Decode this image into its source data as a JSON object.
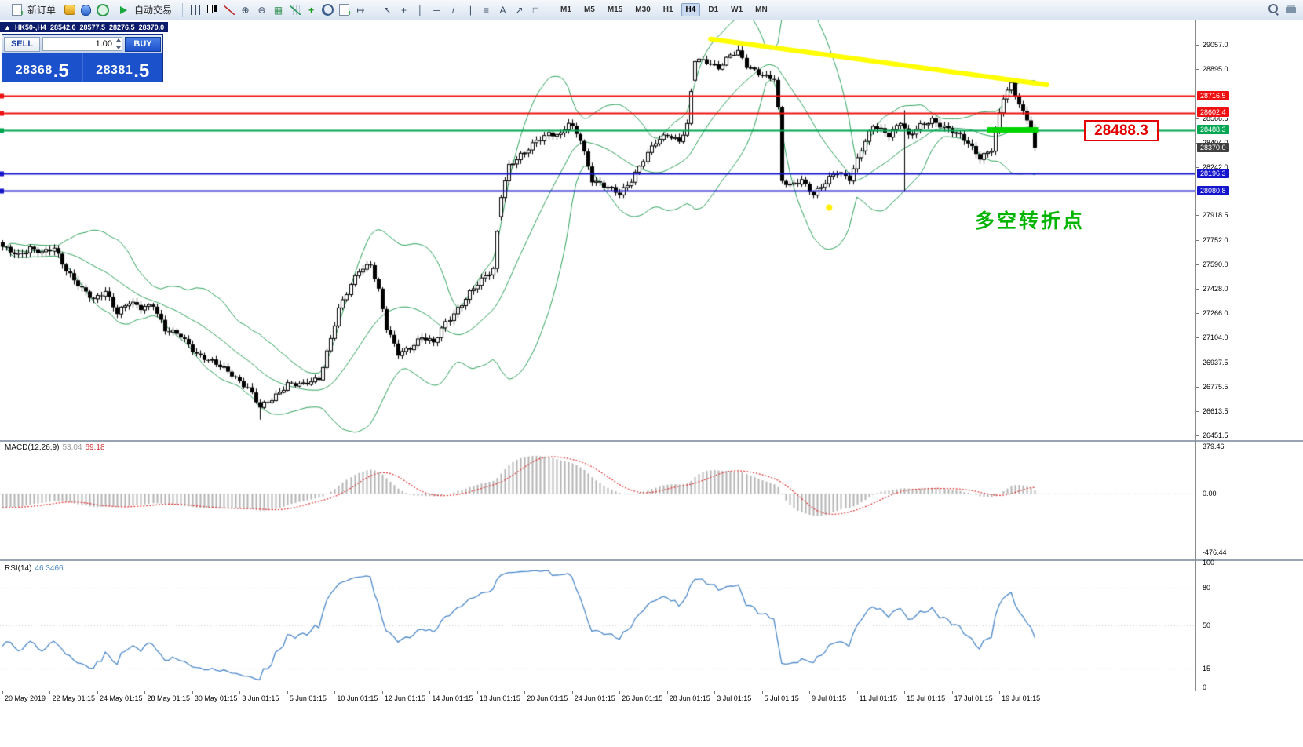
{
  "toolbar": {
    "new_order_label": "新订单",
    "autotrade_label": "自动交易",
    "chart_icons": [
      {
        "name": "bar-chart-icon",
        "css": "ic-bars"
      },
      {
        "name": "candlestick-chart-icon",
        "css": "ic-candle"
      },
      {
        "name": "line-chart-icon",
        "css": "ic-line"
      },
      {
        "name": "zoom-in-icon",
        "glyph": "⊕"
      },
      {
        "name": "zoom-out-icon",
        "glyph": "⊖"
      },
      {
        "name": "tile-windows-icon",
        "glyph": "▦",
        "color": "#2f8f4f"
      },
      {
        "name": "indicators-icon",
        "css": "ic-ind"
      },
      {
        "name": "add-indicator-icon",
        "glyph": "+",
        "color": "#159a15"
      },
      {
        "name": "period-icon",
        "css": "ic-clock"
      },
      {
        "name": "templates-icon",
        "css": "ic-doc"
      },
      {
        "name": "chart-shift-icon",
        "glyph": "↦"
      }
    ],
    "draw_icons": [
      {
        "name": "cursor-icon",
        "glyph": "↖"
      },
      {
        "name": "crosshair-icon",
        "glyph": "+"
      },
      {
        "name": "vertical-line-icon",
        "glyph": "│"
      },
      {
        "name": "horizontal-line-icon",
        "glyph": "─"
      },
      {
        "name": "trendline-icon",
        "glyph": "/"
      },
      {
        "name": "channel-icon",
        "glyph": "∥"
      },
      {
        "name": "fibonacci-icon",
        "glyph": "≡"
      },
      {
        "name": "text-icon",
        "glyph": "A"
      },
      {
        "name": "arrows-icon",
        "glyph": "↗"
      },
      {
        "name": "shapes-icon",
        "glyph": "□"
      }
    ],
    "timeframes": [
      "M1",
      "M5",
      "M15",
      "M30",
      "H1",
      "H4",
      "D1",
      "W1",
      "MN"
    ],
    "active_timeframe": "H4",
    "right_icons": [
      {
        "name": "search-icon",
        "css": "ic-search"
      },
      {
        "name": "print-icon",
        "css": "ic-print"
      }
    ]
  },
  "chart_info": {
    "direction_glyph": "▲",
    "symbol_period": "HK50-,H4",
    "open": "28542.0",
    "high": "28577.5",
    "low": "28276.5",
    "close": "28370.0"
  },
  "one_click": {
    "sell_label": "SELL",
    "buy_label": "BUY",
    "volume": "1.00",
    "sell_price_main": "28368",
    "sell_price_pips": ".5",
    "buy_price_main": "28381",
    "buy_price_pips": ".5"
  },
  "annotations": {
    "price_callout": "28488.3",
    "note_text": "多空转折点",
    "note_color": "#00b400"
  },
  "macd": {
    "label": "MACD(12,26,9)",
    "value_main": "53.04",
    "value_signal": "69.18",
    "axis_labels": [
      "379.46",
      "0.00",
      "-476.44"
    ]
  },
  "rsi": {
    "label": "RSI(14)",
    "value": "46.3466",
    "axis_labels": [
      "100",
      "80",
      "50",
      "15",
      "0"
    ]
  },
  "price_axis": {
    "plain_labels": [
      29057.0,
      28895.0,
      28566.5,
      28404.0,
      28242.0,
      27918.5,
      27752.0,
      27590.0,
      27428.0,
      27266.0,
      27104.0,
      26937.5,
      26775.5,
      26613.5,
      26451.5
    ],
    "level_labels": [
      {
        "value": "28716.5",
        "color": "#ee1111"
      },
      {
        "value": "28602.4",
        "color": "#ee1111"
      },
      {
        "value": "28488.3",
        "color": "#00a651"
      },
      {
        "value": "28370.0",
        "color": "#404040"
      },
      {
        "value": "28196.3",
        "color": "#1515cc"
      },
      {
        "value": "28080.8",
        "color": "#1515cc"
      }
    ]
  },
  "time_axis": {
    "labels": [
      "20 May 2019",
      "22 May 01:15",
      "24 May 01:15",
      "28 May 01:15",
      "30 May 01:15",
      "3 Jun 01:15",
      "5 Jun 01:15",
      "10 Jun 01:15",
      "12 Jun 01:15",
      "14 Jun 01:15",
      "18 Jun 01:15",
      "20 Jun 01:15",
      "24 Jun 01:15",
      "26 Jun 01:15",
      "28 Jun 01:15",
      "3 Jul 01:15",
      "5 Jul 01:15",
      "9 Jul 01:15",
      "11 Jul 01:15",
      "15 Jul 01:15",
      "17 Jul 01:15",
      "19 Jul 01:15"
    ],
    "candles_per_tick": 12
  },
  "chart_data": {
    "type": "candlestick",
    "symbol": "HK50",
    "timeframe": "H4",
    "ohlc_header": {
      "open": 28542.0,
      "high": 28577.5,
      "low": 28276.5,
      "close": 28370.0
    },
    "price_axis_range": [
      26451.5,
      29057.0
    ],
    "candle_count": 262,
    "current_price": 28370.0,
    "close_keypoints": [
      [
        0,
        27700
      ],
      [
        4,
        27660
      ],
      [
        7,
        27700
      ],
      [
        10,
        27660
      ],
      [
        13,
        27700
      ],
      [
        16,
        27560
      ],
      [
        20,
        27420
      ],
      [
        23,
        27350
      ],
      [
        26,
        27420
      ],
      [
        29,
        27270
      ],
      [
        32,
        27330
      ],
      [
        35,
        27300
      ],
      [
        38,
        27330
      ],
      [
        41,
        27150
      ],
      [
        45,
        27110
      ],
      [
        49,
        27000
      ],
      [
        54,
        26920
      ],
      [
        58,
        26860
      ],
      [
        62,
        26770
      ],
      [
        65,
        26630
      ],
      [
        68,
        26690
      ],
      [
        72,
        26800
      ],
      [
        76,
        26780
      ],
      [
        80,
        26830
      ],
      [
        82,
        27010
      ],
      [
        85,
        27290
      ],
      [
        90,
        27550
      ],
      [
        93,
        27600
      ],
      [
        95,
        27420
      ],
      [
        97,
        27160
      ],
      [
        100,
        26990
      ],
      [
        103,
        27040
      ],
      [
        106,
        27110
      ],
      [
        109,
        27060
      ],
      [
        112,
        27200
      ],
      [
        115,
        27300
      ],
      [
        118,
        27400
      ],
      [
        121,
        27480
      ],
      [
        124,
        27560
      ],
      [
        126,
        28060
      ],
      [
        128,
        28250
      ],
      [
        132,
        28330
      ],
      [
        135,
        28420
      ],
      [
        138,
        28470
      ],
      [
        141,
        28450
      ],
      [
        143,
        28530
      ],
      [
        146,
        28430
      ],
      [
        149,
        28160
      ],
      [
        152,
        28110
      ],
      [
        156,
        28060
      ],
      [
        159,
        28160
      ],
      [
        162,
        28290
      ],
      [
        165,
        28400
      ],
      [
        168,
        28460
      ],
      [
        171,
        28420
      ],
      [
        173,
        28520
      ],
      [
        175,
        28950
      ],
      [
        178,
        28940
      ],
      [
        181,
        28910
      ],
      [
        184,
        28990
      ],
      [
        186,
        29000
      ],
      [
        188,
        28910
      ],
      [
        192,
        28860
      ],
      [
        195,
        28830
      ],
      [
        196,
        28620
      ],
      [
        197,
        28140
      ],
      [
        199,
        28110
      ],
      [
        202,
        28160
      ],
      [
        205,
        28060
      ],
      [
        208,
        28130
      ],
      [
        211,
        28210
      ],
      [
        214,
        28170
      ],
      [
        217,
        28360
      ],
      [
        220,
        28510
      ],
      [
        224,
        28460
      ],
      [
        227,
        28550
      ],
      [
        229,
        28440
      ],
      [
        232,
        28510
      ],
      [
        235,
        28560
      ],
      [
        238,
        28510
      ],
      [
        241,
        28460
      ],
      [
        244,
        28400
      ],
      [
        247,
        28310
      ],
      [
        250,
        28360
      ],
      [
        253,
        28700
      ],
      [
        255,
        28790
      ],
      [
        258,
        28610
      ],
      [
        260,
        28520
      ],
      [
        261,
        28370
      ]
    ],
    "gaps": [
      {
        "index": 126,
        "open": 27910
      },
      {
        "index": 175,
        "open": 28820
      }
    ],
    "special_wicks": [
      {
        "index": 65,
        "low": 26555
      },
      {
        "index": 186,
        "high": 29060
      },
      {
        "index": 228,
        "high": 28620,
        "low": 28075
      }
    ],
    "levels": [
      {
        "price": 28716.5,
        "color": "#ee1111"
      },
      {
        "price": 28602.4,
        "color": "#ee1111"
      },
      {
        "price": 28488.3,
        "color": "#00a651"
      },
      {
        "price": 28196.3,
        "color": "#1515cc"
      },
      {
        "price": 28080.8,
        "color": "#1515cc"
      }
    ],
    "bollinger": {
      "period": 20,
      "deviation": 2,
      "color": "#2ca05a"
    },
    "trendline": {
      "color": "#ffff00",
      "from": {
        "index": 179,
        "price": 29095
      },
      "to": {
        "index": 264,
        "price": 28790
      }
    },
    "highlight": {
      "color": "#00d400",
      "price": 28488.3,
      "from_index": 249,
      "to_index": 262
    },
    "marker_dot": {
      "color": "#ffee00",
      "index": 209,
      "price": 27970
    },
    "macd": {
      "fast": 12,
      "slow": 26,
      "signal_period": 9,
      "current_hist": 53.04,
      "current_signal": 69.18,
      "axis_max": 379.46,
      "axis_min": -476.44
    },
    "rsi": {
      "period": 14,
      "current": 46.3466,
      "levels": [
        80,
        50,
        15
      ]
    }
  }
}
